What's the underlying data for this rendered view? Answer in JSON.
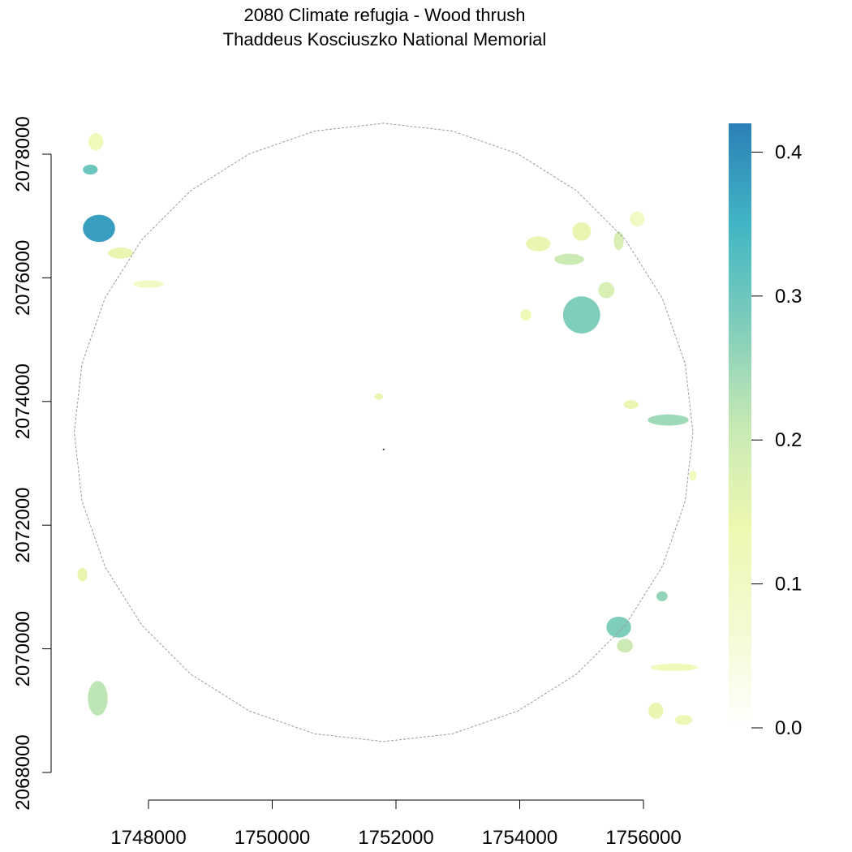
{
  "title": {
    "line1": "2080 Climate refugia - Wood thrush",
    "line2": "Thaddeus Kosciuszko National Memorial"
  },
  "colors": {
    "ramp": [
      "#ffffff",
      "#f4fad2",
      "#edf8b1",
      "#c7e9b4",
      "#7fcdbb",
      "#41b6c4",
      "#2c7fb8"
    ],
    "boundary": "#9a9a9a",
    "axis": "#000000"
  },
  "chart_data": {
    "type": "heatmap",
    "title": "2080 Climate refugia - Wood thrush\nThaddeus Kosciuszko National Memorial",
    "xlabel": "",
    "ylabel": "",
    "x_ticks": [
      1748000,
      1750000,
      1752000,
      1754000,
      1756000
    ],
    "y_ticks": [
      2068000,
      2070000,
      2072000,
      2074000,
      2076000,
      2078000
    ],
    "xlim": [
      1746500,
      1757000
    ],
    "ylim": [
      2067800,
      2078700
    ],
    "legend": {
      "type": "colorbar",
      "placement": "right",
      "min": 0.0,
      "max": 0.42,
      "ticks": [
        0.0,
        0.1,
        0.2,
        0.3,
        0.4
      ],
      "tick_labels": [
        "0.0",
        "0.1",
        "0.2",
        "0.3",
        "0.4"
      ]
    },
    "boundary": {
      "style": "dashed",
      "shape": "circle",
      "center": [
        1751800,
        2073500
      ],
      "radius": 5000
    },
    "patches": [
      {
        "name": "nw-small",
        "x": 1747060,
        "y": 2077750,
        "rx": 120,
        "ry": 80,
        "value": 0.3
      },
      {
        "name": "nw-large",
        "x": 1747200,
        "y": 2076800,
        "rx": 260,
        "ry": 220,
        "value": 0.38
      },
      {
        "name": "nw-fringe",
        "x": 1747550,
        "y": 2076400,
        "rx": 200,
        "ry": 90,
        "value": 0.15
      },
      {
        "name": "nw-top",
        "x": 1747150,
        "y": 2078200,
        "rx": 120,
        "ry": 140,
        "value": 0.12
      },
      {
        "name": "ne-1",
        "x": 1754300,
        "y": 2076550,
        "rx": 200,
        "ry": 120,
        "value": 0.15
      },
      {
        "name": "ne-2",
        "x": 1754800,
        "y": 2076300,
        "rx": 240,
        "ry": 90,
        "value": 0.2
      },
      {
        "name": "ne-3",
        "x": 1755000,
        "y": 2076750,
        "rx": 150,
        "ry": 150,
        "value": 0.15
      },
      {
        "name": "ne-4",
        "x": 1755600,
        "y": 2076600,
        "rx": 80,
        "ry": 150,
        "value": 0.18
      },
      {
        "name": "ne-5",
        "x": 1755900,
        "y": 2076950,
        "rx": 120,
        "ry": 120,
        "value": 0.1
      },
      {
        "name": "e-blob",
        "x": 1755000,
        "y": 2075400,
        "rx": 300,
        "ry": 300,
        "value": 0.28
      },
      {
        "name": "e-blob-ext",
        "x": 1755400,
        "y": 2075800,
        "rx": 130,
        "ry": 130,
        "value": 0.18
      },
      {
        "name": "e-small",
        "x": 1754100,
        "y": 2075400,
        "rx": 90,
        "ry": 90,
        "value": 0.12
      },
      {
        "name": "e-mid",
        "x": 1756400,
        "y": 2073700,
        "rx": 330,
        "ry": 90,
        "value": 0.25
      },
      {
        "name": "e-mid-2",
        "x": 1755800,
        "y": 2073950,
        "rx": 120,
        "ry": 70,
        "value": 0.15
      },
      {
        "name": "e-mid-3",
        "x": 1756800,
        "y": 2072800,
        "rx": 60,
        "ry": 80,
        "value": 0.12
      },
      {
        "name": "se-1",
        "x": 1755600,
        "y": 2070350,
        "rx": 200,
        "ry": 170,
        "value": 0.28
      },
      {
        "name": "se-2",
        "x": 1755700,
        "y": 2070050,
        "rx": 130,
        "ry": 110,
        "value": 0.2
      },
      {
        "name": "se-3",
        "x": 1756300,
        "y": 2070850,
        "rx": 90,
        "ry": 80,
        "value": 0.26
      },
      {
        "name": "se-4",
        "x": 1756500,
        "y": 2069700,
        "rx": 380,
        "ry": 60,
        "value": 0.12
      },
      {
        "name": "se-5",
        "x": 1756200,
        "y": 2069000,
        "rx": 120,
        "ry": 130,
        "value": 0.15
      },
      {
        "name": "se-6",
        "x": 1756650,
        "y": 2068850,
        "rx": 140,
        "ry": 80,
        "value": 0.13
      },
      {
        "name": "sw-1",
        "x": 1747180,
        "y": 2069200,
        "rx": 160,
        "ry": 280,
        "value": 0.22
      },
      {
        "name": "w-small",
        "x": 1746930,
        "y": 2071200,
        "rx": 80,
        "ry": 110,
        "value": 0.15
      },
      {
        "name": "w-strip",
        "x": 1748000,
        "y": 2075900,
        "rx": 250,
        "ry": 60,
        "value": 0.1
      },
      {
        "name": "center",
        "x": 1751720,
        "y": 2074080,
        "rx": 70,
        "ry": 50,
        "value": 0.15
      }
    ]
  }
}
